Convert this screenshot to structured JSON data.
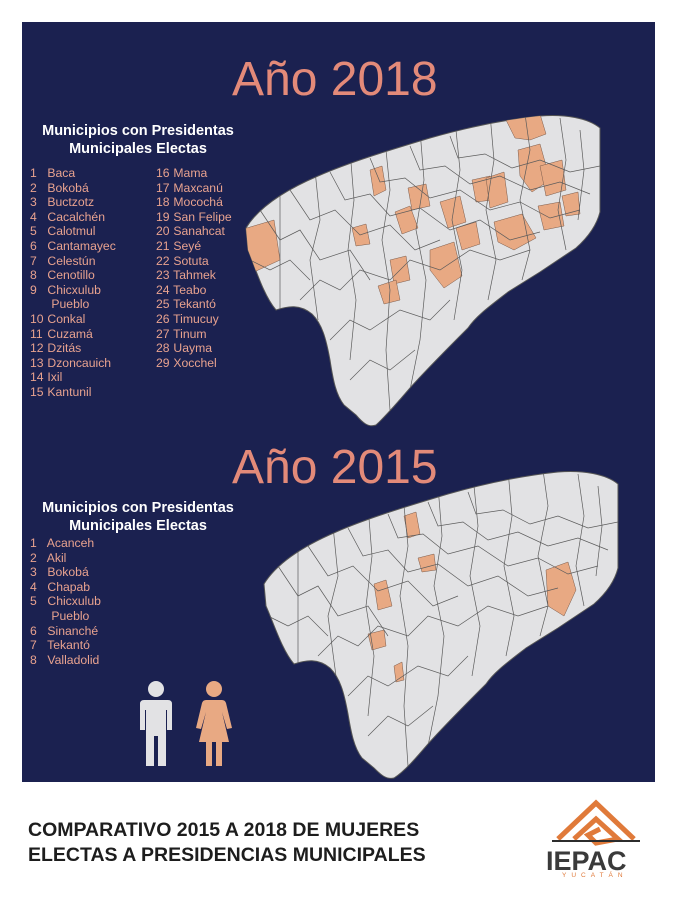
{
  "map_2018": {
    "year_label": "Año 2018",
    "list_title_line1": "Municipios con Presidentas",
    "list_title_line2": "Municipales Electas",
    "municipalities": [
      {
        "num": "1",
        "name": "Baca"
      },
      {
        "num": "2",
        "name": "Bokobá"
      },
      {
        "num": "3",
        "name": "Buctzotz"
      },
      {
        "num": "4",
        "name": "Cacalchén"
      },
      {
        "num": "5",
        "name": "Calotmul"
      },
      {
        "num": "6",
        "name": "Cantamayec"
      },
      {
        "num": "7",
        "name": "Celestún"
      },
      {
        "num": "8",
        "name": "Cenotillo"
      },
      {
        "num": "9",
        "name": "Chicxulub"
      },
      {
        "num": "",
        "name": "Pueblo"
      },
      {
        "num": "10",
        "name": "Conkal"
      },
      {
        "num": "11",
        "name": "Cuzamá"
      },
      {
        "num": "12",
        "name": "Dzitás"
      },
      {
        "num": "13",
        "name": "Dzoncauich"
      },
      {
        "num": "14",
        "name": "Ixil"
      },
      {
        "num": "15",
        "name": "Kantunil"
      },
      {
        "num": "16",
        "name": "Mama"
      },
      {
        "num": "17",
        "name": "Maxcanú"
      },
      {
        "num": "18",
        "name": "Mocochá"
      },
      {
        "num": "19",
        "name": "San Felipe"
      },
      {
        "num": "20",
        "name": "Sanahcat"
      },
      {
        "num": "21",
        "name": "Seyé"
      },
      {
        "num": "22",
        "name": "Sotuta"
      },
      {
        "num": "23",
        "name": "Tahmek"
      },
      {
        "num": "24",
        "name": "Teabo"
      },
      {
        "num": "25",
        "name": "Tekantó"
      },
      {
        "num": "26",
        "name": "Timucuy"
      },
      {
        "num": "27",
        "name": "Tinum"
      },
      {
        "num": "28",
        "name": "Uayma"
      },
      {
        "num": "29",
        "name": "Xocchel"
      }
    ]
  },
  "map_2015": {
    "year_label": "Año 2015",
    "list_title_line1": "Municipios con Presidentas",
    "list_title_line2": "Municipales Electas",
    "municipalities": [
      {
        "num": "1",
        "name": "Acanceh"
      },
      {
        "num": "2",
        "name": "Akil"
      },
      {
        "num": "3",
        "name": "Bokobá"
      },
      {
        "num": "4",
        "name": "Chapab"
      },
      {
        "num": "5",
        "name": "Chicxulub"
      },
      {
        "num": "",
        "name": "Pueblo"
      },
      {
        "num": "6",
        "name": "Sinanché"
      },
      {
        "num": "7",
        "name": "Tekantó"
      },
      {
        "num": "8",
        "name": "Valladolid"
      }
    ]
  },
  "footer": {
    "title_line1": "COMPARATIVO 2015 A 2018 DE MUJERES",
    "title_line2": "ELECTAS A PRESIDENCIAS MUNICIPALES",
    "logo_text": "IEPAC",
    "logo_sub": "YUCATÁN"
  },
  "colors": {
    "background": "#1b2150",
    "highlight": "#e8a983",
    "map_fill": "#e2e2e4",
    "year_text": "#e38a79",
    "list_text": "#e8a28f",
    "male_icon": "#e2e2e4",
    "female_icon": "#e8a983"
  },
  "icons": [
    "male-person-icon",
    "female-person-icon",
    "iepac-logo-icon"
  ]
}
